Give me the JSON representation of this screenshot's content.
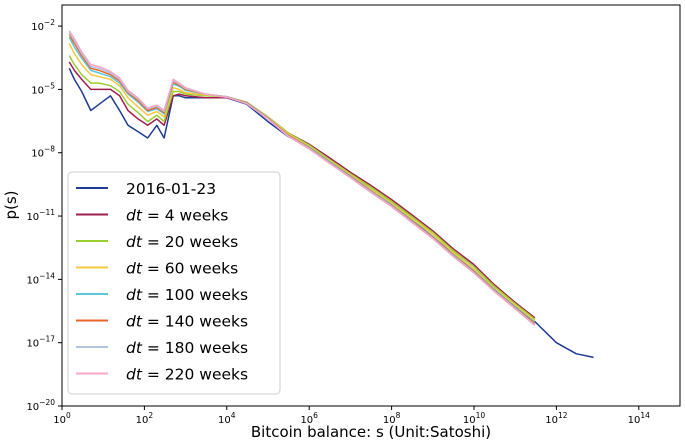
{
  "chart_data": {
    "type": "line",
    "xlabel": "Bitcoin balance: s (Unit:Satoshi)",
    "ylabel": "p(s)",
    "xscale": "log",
    "yscale": "log",
    "xlim": [
      1,
      1000000000000000.0
    ],
    "ylim": [
      1e-20,
      0.1
    ],
    "xtick_labels": [
      {
        "base": "10",
        "exp": "0",
        "value": 1
      },
      {
        "base": "10",
        "exp": "2",
        "value": 100
      },
      {
        "base": "10",
        "exp": "4",
        "value": 10000
      },
      {
        "base": "10",
        "exp": "6",
        "value": 1000000
      },
      {
        "base": "10",
        "exp": "8",
        "value": 100000000
      },
      {
        "base": "10",
        "exp": "10",
        "value": 10000000000
      },
      {
        "base": "10",
        "exp": "12",
        "value": 1000000000000
      },
      {
        "base": "10",
        "exp": "14",
        "value": 100000000000000
      }
    ],
    "ytick_labels": [
      {
        "base": "10",
        "exp": "−2",
        "value": 0.01
      },
      {
        "base": "10",
        "exp": "−5",
        "value": 1e-05
      },
      {
        "base": "10",
        "exp": "−8",
        "value": 1e-08
      },
      {
        "base": "10",
        "exp": "−11",
        "value": 1e-11
      },
      {
        "base": "10",
        "exp": "−14",
        "value": 1e-14
      },
      {
        "base": "10",
        "exp": "−17",
        "value": 1e-17
      },
      {
        "base": "10",
        "exp": "−20",
        "value": 1e-20
      }
    ],
    "legend_placement": "lower-left",
    "grid": false,
    "series": [
      {
        "name_prefix": "",
        "name_suffix": "2016-01-23",
        "color": "#1f3a93",
        "x": [
          1.5,
          2,
          3,
          5,
          8,
          15,
          25,
          40,
          70,
          120,
          200,
          300,
          500,
          700,
          1000,
          3000,
          10000,
          30000,
          100000,
          300000,
          1000000,
          3000000,
          10000000,
          30000000,
          100000000,
          300000000,
          1000000000,
          3000000000,
          10000000000,
          30000000000,
          100000000000,
          300000000000,
          1000000000000,
          3000000000000,
          8000000000000
        ],
        "y": [
          0.0001,
          3e-05,
          8e-06,
          1e-06,
          2e-06,
          5e-06,
          1e-06,
          2e-07,
          1e-07,
          5e-08,
          2e-07,
          5e-08,
          5e-06,
          5e-06,
          4e-06,
          4e-06,
          4e-06,
          2e-06,
          3e-07,
          6e-08,
          2e-08,
          4e-09,
          1e-09,
          2e-10,
          4e-11,
          8e-12,
          1e-12,
          2e-13,
          3e-14,
          4e-15,
          5e-16,
          1e-16,
          1e-17,
          3e-18,
          2e-18
        ]
      },
      {
        "name_prefix": "dt",
        "name_suffix": " = 4 weeks",
        "color": "#9e1f4e",
        "x": [
          1.5,
          2,
          3,
          5,
          8,
          15,
          25,
          40,
          70,
          120,
          200,
          300,
          500,
          700,
          1000,
          3000,
          10000,
          30000,
          100000,
          300000,
          1000000,
          3000000,
          10000000,
          30000000,
          100000000,
          300000000,
          1000000000,
          3000000000,
          10000000000,
          30000000000,
          100000000000,
          300000000000
        ],
        "y": [
          0.0002,
          8e-05,
          3e-05,
          1e-05,
          1e-05,
          1e-05,
          5e-06,
          1e-06,
          4e-07,
          2e-07,
          4e-07,
          2e-07,
          5e-06,
          6e-06,
          5e-06,
          4e-06,
          4e-06,
          2.5e-06,
          5e-07,
          9e-08,
          2.5e-08,
          6e-09,
          1.2e-09,
          3e-10,
          6e-11,
          1.2e-11,
          2e-12,
          3e-13,
          5e-14,
          6e-15,
          8e-16,
          1.5e-16
        ]
      },
      {
        "name_prefix": "dt",
        "name_suffix": " = 20 weeks",
        "color": "#9acd32",
        "x": [
          1.5,
          2,
          3,
          5,
          8,
          15,
          25,
          40,
          70,
          120,
          200,
          300,
          500,
          700,
          1000,
          3000,
          10000,
          30000,
          100000,
          300000,
          1000000,
          3000000,
          10000000,
          30000000,
          100000000,
          300000000,
          1000000000,
          3000000000,
          10000000000,
          30000000000,
          100000000000,
          300000000000
        ],
        "y": [
          0.0004,
          0.00015,
          5e-05,
          2e-05,
          2e-05,
          1.5e-05,
          8e-06,
          2e-06,
          8e-07,
          3e-07,
          6e-07,
          3e-07,
          8e-06,
          8e-06,
          6e-06,
          5e-06,
          4.5e-06,
          2.5e-06,
          5e-07,
          9e-08,
          2.3e-08,
          5e-09,
          1e-09,
          2.5e-10,
          5e-11,
          1e-11,
          1.7e-12,
          2.5e-13,
          4e-14,
          5e-15,
          7e-16,
          1.3e-16
        ]
      },
      {
        "name_prefix": "dt",
        "name_suffix": " = 60 weeks",
        "color": "#f4c842",
        "x": [
          1.5,
          2,
          3,
          5,
          8,
          15,
          25,
          40,
          70,
          120,
          200,
          300,
          500,
          700,
          1000,
          3000,
          10000,
          30000,
          100000,
          300000,
          1000000,
          3000000,
          10000000,
          30000000,
          100000000,
          300000000,
          1000000000,
          3000000000,
          10000000000,
          30000000000,
          100000000000,
          300000000000
        ],
        "y": [
          0.0015,
          0.0005,
          0.00015,
          5e-05,
          4e-05,
          3e-05,
          1.5e-05,
          4e-06,
          1.5e-06,
          6e-07,
          9e-07,
          5e-07,
          1.2e-05,
          1e-05,
          7e-06,
          5.5e-06,
          4.5e-06,
          2.5e-06,
          5e-07,
          8e-08,
          2e-08,
          4.5e-09,
          9e-10,
          2e-10,
          4e-11,
          8e-12,
          1.4e-12,
          2e-13,
          3e-14,
          4e-15,
          6e-16,
          1.1e-16
        ]
      },
      {
        "name_prefix": "dt",
        "name_suffix": " = 100 weeks",
        "color": "#5bc8d6",
        "x": [
          1.5,
          2,
          3,
          5,
          8,
          15,
          25,
          40,
          70,
          120,
          200,
          300,
          500,
          700,
          1000,
          3000,
          10000,
          30000,
          100000,
          300000,
          1000000,
          3000000,
          10000000,
          30000000,
          100000000,
          300000000,
          1000000000,
          3000000000,
          10000000000,
          30000000000,
          100000000000,
          300000000000
        ],
        "y": [
          0.003,
          0.001,
          0.0003,
          8e-05,
          6e-05,
          4e-05,
          2e-05,
          6e-06,
          2.5e-06,
          9e-07,
          1.2e-06,
          7e-07,
          1.8e-05,
          1.4e-05,
          9e-06,
          6e-06,
          4.5e-06,
          2.4e-06,
          4.5e-07,
          7e-08,
          1.8e-08,
          4e-09,
          8e-10,
          1.7e-10,
          3.4e-11,
          6.5e-12,
          1.1e-12,
          1.6e-13,
          2.5e-14,
          3.5e-15,
          5e-16,
          9e-17
        ]
      },
      {
        "name_prefix": "dt",
        "name_suffix": " = 140 weeks",
        "color": "#e8642c",
        "x": [
          1.5,
          2,
          3,
          5,
          8,
          15,
          25,
          40,
          70,
          120,
          200,
          300,
          500,
          700,
          1000,
          3000,
          10000,
          30000,
          100000,
          300000,
          1000000,
          3000000,
          10000000,
          30000000,
          100000000,
          300000000,
          1000000000,
          3000000000,
          10000000000,
          30000000000,
          100000000000,
          300000000000
        ],
        "y": [
          0.004,
          0.0015,
          0.0004,
          0.0001,
          8e-05,
          5e-05,
          2.5e-05,
          7e-06,
          3e-06,
          1e-06,
          1.4e-06,
          8e-07,
          2.2e-05,
          1.6e-05,
          1e-05,
          6e-06,
          4.5e-06,
          2.3e-06,
          4.3e-07,
          7e-08,
          1.7e-08,
          3.7e-09,
          7.5e-10,
          1.6e-10,
          3.2e-11,
          6e-12,
          1e-12,
          1.5e-13,
          2.3e-14,
          3.2e-15,
          4.5e-16,
          8e-17
        ]
      },
      {
        "name_prefix": "dt",
        "name_suffix": " = 180 weeks",
        "color": "#b0c4de",
        "x": [
          1.5,
          2,
          3,
          5,
          8,
          15,
          25,
          40,
          70,
          120,
          200,
          300,
          500,
          700,
          1000,
          3000,
          10000,
          30000,
          100000,
          300000,
          1000000,
          3000000,
          10000000,
          30000000,
          100000000,
          300000000,
          1000000000,
          3000000000,
          10000000000,
          30000000000,
          100000000000,
          300000000000
        ],
        "y": [
          0.005,
          0.002,
          0.0005,
          0.00012,
          0.0001,
          6e-05,
          3e-05,
          8e-06,
          3.5e-06,
          1.2e-06,
          1.6e-06,
          9e-07,
          2.6e-05,
          1.8e-05,
          1.1e-05,
          6e-06,
          4.4e-06,
          2.2e-06,
          4.1e-07,
          6.5e-08,
          1.6e-08,
          3.5e-09,
          7e-10,
          1.5e-10,
          3e-11,
          5.5e-12,
          9e-13,
          1.4e-13,
          2.1e-14,
          3e-15,
          4.2e-16,
          7e-17
        ]
      },
      {
        "name_prefix": "dt",
        "name_suffix": " = 220 weeks",
        "color": "#f4a6c8",
        "x": [
          1.5,
          2,
          3,
          5,
          8,
          15,
          25,
          40,
          70,
          120,
          200,
          300,
          500,
          700,
          1000,
          3000,
          10000,
          30000,
          100000,
          300000,
          1000000,
          3000000,
          10000000,
          30000000,
          100000000,
          300000000,
          1000000000,
          3000000000,
          10000000000,
          30000000000,
          100000000000,
          300000000000
        ],
        "y": [
          0.006,
          0.0025,
          0.0006,
          0.00015,
          0.00012,
          7e-05,
          3.5e-05,
          9e-06,
          4e-06,
          1.3e-06,
          1.8e-06,
          1e-06,
          3e-05,
          2e-05,
          1.2e-05,
          6e-06,
          4.3e-06,
          2.1e-06,
          4e-07,
          6.2e-08,
          1.5e-08,
          3.3e-09,
          6.6e-10,
          1.4e-10,
          2.8e-11,
          5.2e-12,
          8.5e-13,
          1.3e-13,
          2e-14,
          2.8e-15,
          4e-16,
          6.5e-17
        ]
      }
    ]
  }
}
